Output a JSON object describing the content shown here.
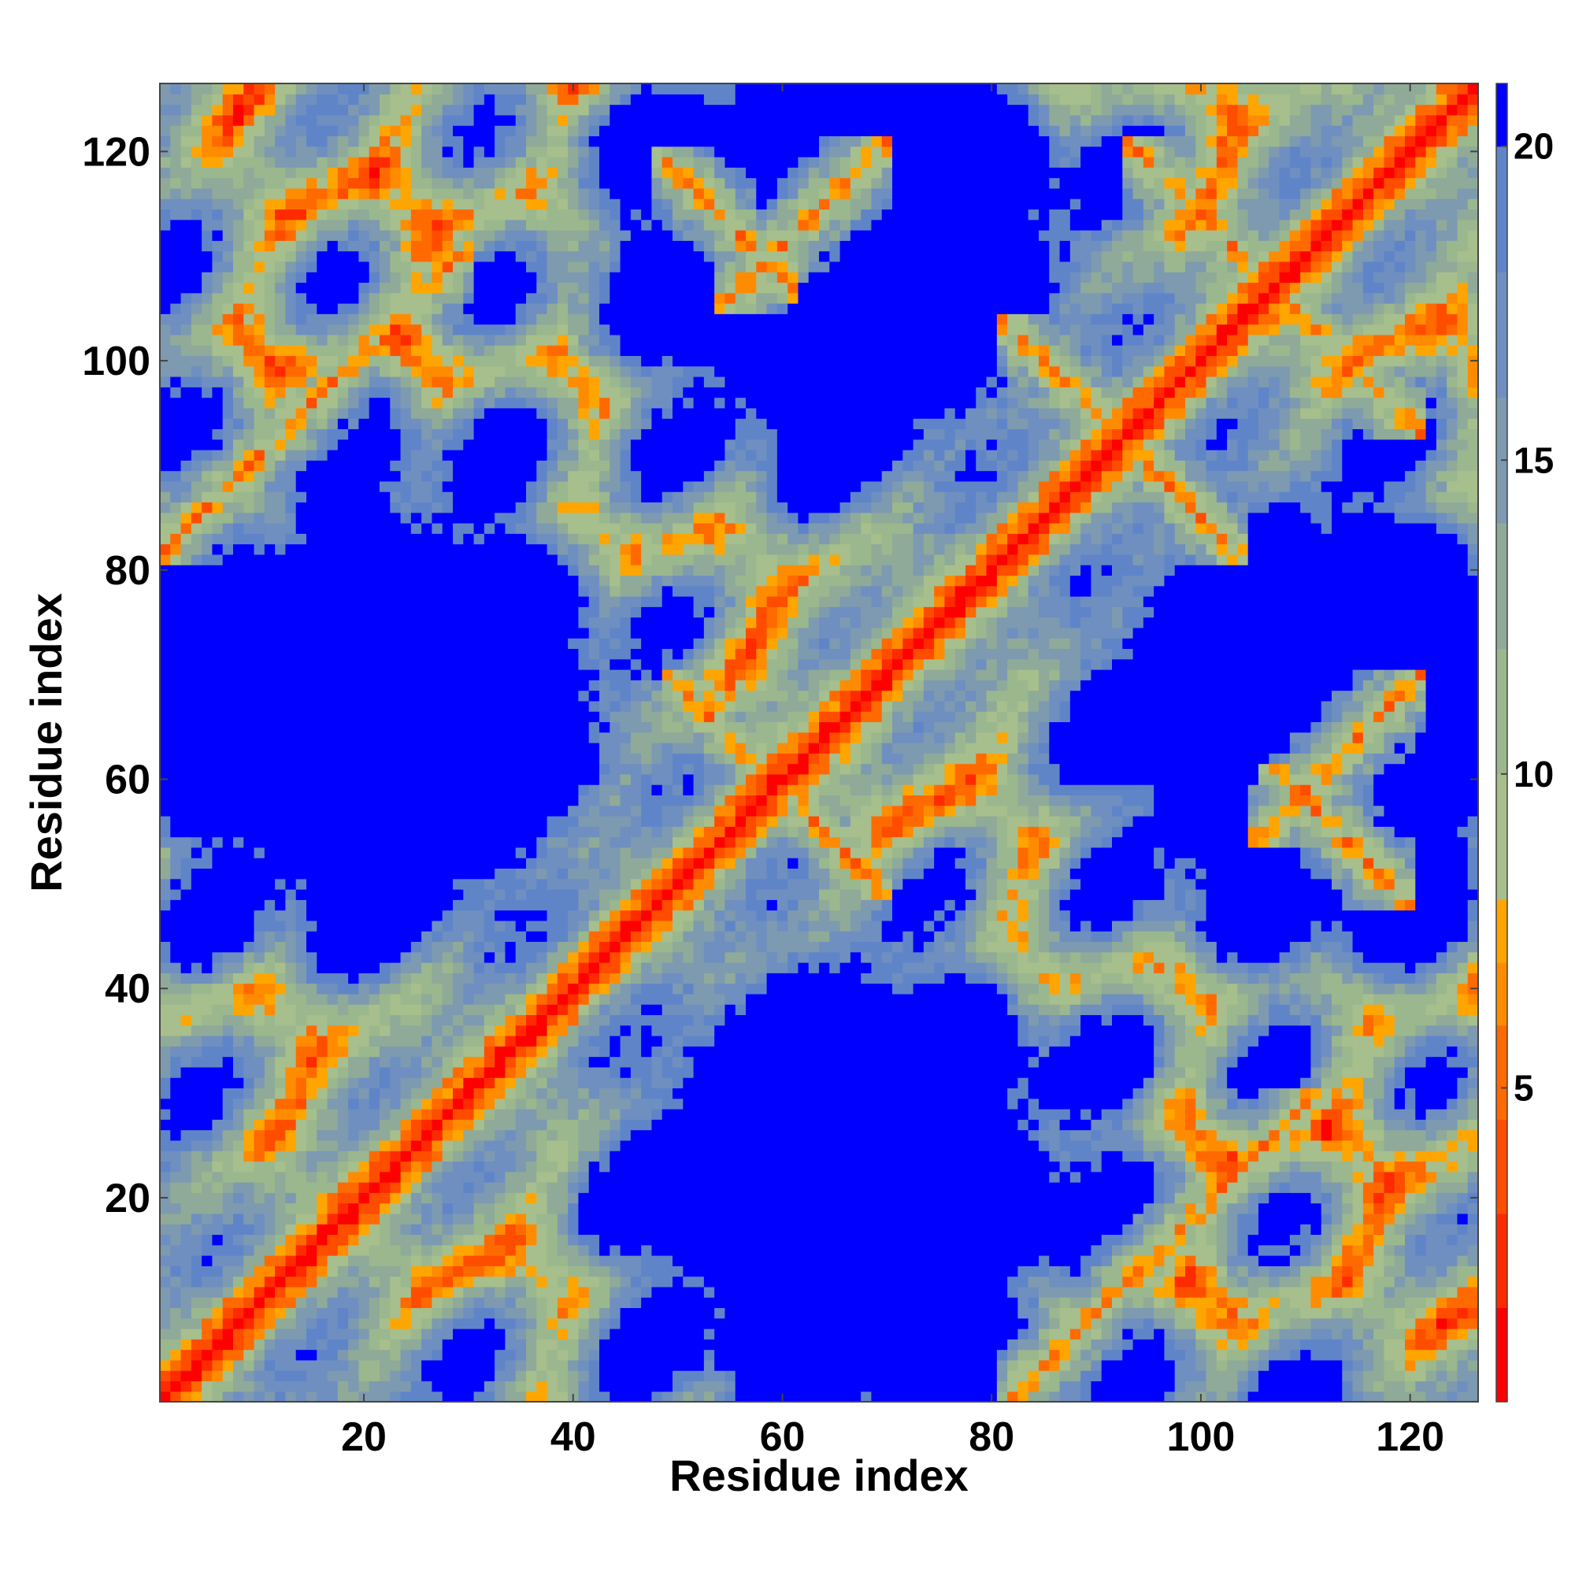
{
  "chart_data": {
    "type": "heatmap",
    "title": "",
    "xlabel": "Residue index",
    "ylabel": "Residue index",
    "n_residues": 126,
    "xlim": [
      1,
      126
    ],
    "ylim": [
      1,
      126
    ],
    "x_ticks": [
      20,
      40,
      60,
      80,
      100,
      120
    ],
    "y_ticks": [
      20,
      40,
      60,
      80,
      100,
      120
    ],
    "colorbar": {
      "ticks": [
        5,
        10,
        15,
        20
      ],
      "range": [
        0,
        21
      ],
      "placement": "right",
      "levels": [
        {
          "max": 1.5,
          "color": "#ff0000"
        },
        {
          "max": 3,
          "color": "#ff2a00"
        },
        {
          "max": 4.5,
          "color": "#ff4d00"
        },
        {
          "max": 6,
          "color": "#ff6a00"
        },
        {
          "max": 7,
          "color": "#ff8c00"
        },
        {
          "max": 8,
          "color": "#ffa500"
        },
        {
          "max": 10,
          "color": "#a7bf8c"
        },
        {
          "max": 12,
          "color": "#9bb78e"
        },
        {
          "max": 14,
          "color": "#8faa98"
        },
        {
          "max": 16,
          "color": "#7d9ab0"
        },
        {
          "max": 18,
          "color": "#6f8fc0"
        },
        {
          "max": 20,
          "color": "#5f85c8"
        },
        {
          "max": 99,
          "color": "#0000ff"
        }
      ]
    },
    "contact_features": [
      {
        "kind": "diagonal",
        "description": "backbone self-distance ridge along i = j"
      },
      {
        "kind": "antiparallel",
        "i_range": [
          51,
          58
        ],
        "j_range": [
          109,
          117
        ]
      },
      {
        "kind": "antiparallel",
        "i_range": [
          96,
          107
        ],
        "j_range": [
          107,
          118
        ]
      },
      {
        "kind": "antiparallel",
        "i_range": [
          84,
          93
        ],
        "j_range": [
          93,
          101
        ]
      },
      {
        "kind": "antiparallel",
        "i_range": [
          52,
          58
        ],
        "j_range": [
          58,
          67
        ]
      },
      {
        "kind": "parallel",
        "i_range": [
          3,
          27
        ],
        "j_range": [
          84,
          108
        ]
      },
      {
        "kind": "parallel",
        "i_range": [
          57,
          67
        ],
        "j_range": [
          108,
          118
        ]
      }
    ]
  }
}
